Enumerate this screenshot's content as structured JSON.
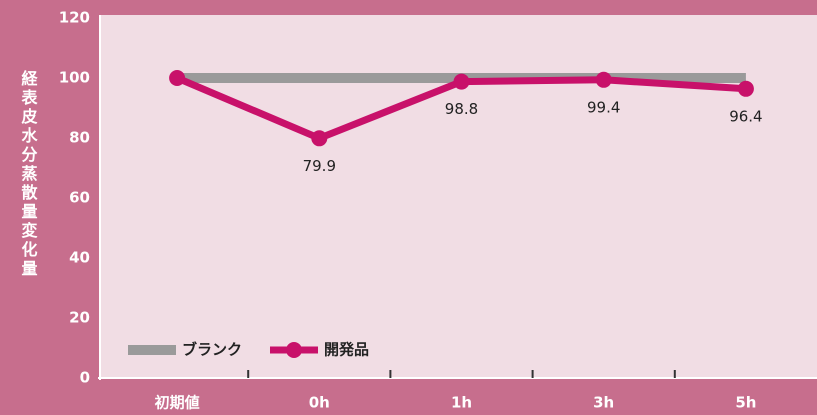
{
  "chart_data": {
    "type": "line",
    "y_label": "経表皮水分蒸散量変化量",
    "categories": [
      "初期値",
      "0h",
      "1h",
      "3h",
      "5h"
    ],
    "series": [
      {
        "name": "ブランク",
        "color": "#9a9a9a",
        "values": [
          100,
          100,
          100,
          100,
          100
        ]
      },
      {
        "name": "開発品",
        "color": "#c8116a",
        "values": [
          100,
          79.9,
          98.8,
          99.4,
          96.4
        ],
        "value_labels": [
          null,
          "79.9",
          "98.8",
          "99.4",
          "96.4"
        ],
        "markers": true
      }
    ],
    "ylim": [
      0,
      120
    ],
    "yticks": [
      0,
      20,
      40,
      60,
      80,
      100,
      120
    ]
  }
}
